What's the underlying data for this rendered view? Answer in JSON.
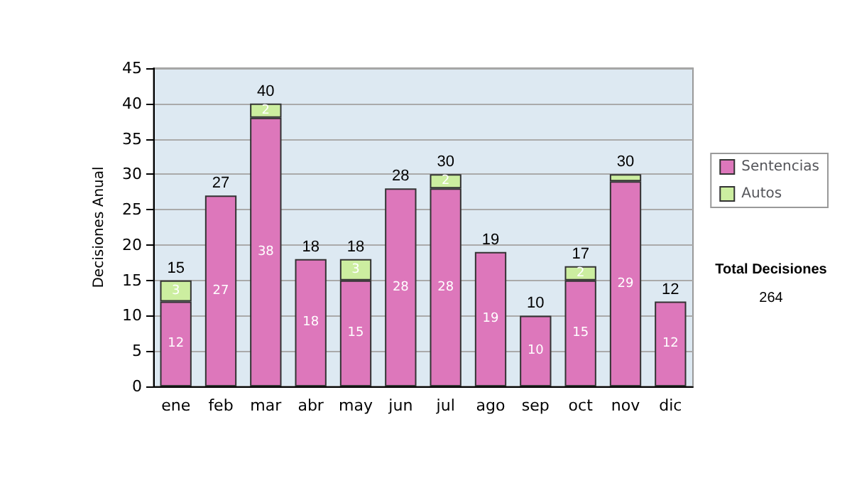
{
  "chart_data": {
    "type": "bar",
    "ylabel": "Decisiones Anual",
    "categories": [
      "ene",
      "feb",
      "mar",
      "abr",
      "may",
      "jun",
      "jul",
      "ago",
      "sep",
      "oct",
      "nov",
      "dic"
    ],
    "series": [
      {
        "name": "Sentencias",
        "color": "#dd77bb",
        "values": [
          12,
          27,
          38,
          18,
          15,
          28,
          28,
          19,
          10,
          15,
          29,
          12
        ],
        "value_labels": [
          "12",
          "27",
          "38",
          "18",
          "15",
          "28",
          "28",
          "19",
          "10",
          "15",
          "29",
          "12"
        ]
      },
      {
        "name": "Autos",
        "color": "#cceea0",
        "values": [
          3,
          0,
          2,
          0,
          3,
          0,
          2,
          0,
          0,
          2,
          1,
          0
        ],
        "value_labels": [
          "3",
          null,
          "2",
          null,
          "3",
          null,
          "2",
          null,
          null,
          "2",
          null,
          null
        ]
      }
    ],
    "stacked": true,
    "totals": [
      "15",
      "27",
      "40",
      "18",
      "18",
      "28",
      "30",
      "19",
      "10",
      "17",
      "30",
      "12"
    ],
    "ylim": [
      0,
      45
    ],
    "yticks": [
      0,
      5,
      10,
      15,
      20,
      25,
      30,
      35,
      40,
      45
    ],
    "grid": "y",
    "legend": "right",
    "annotations": [
      "Total Decisiones",
      "264"
    ]
  }
}
